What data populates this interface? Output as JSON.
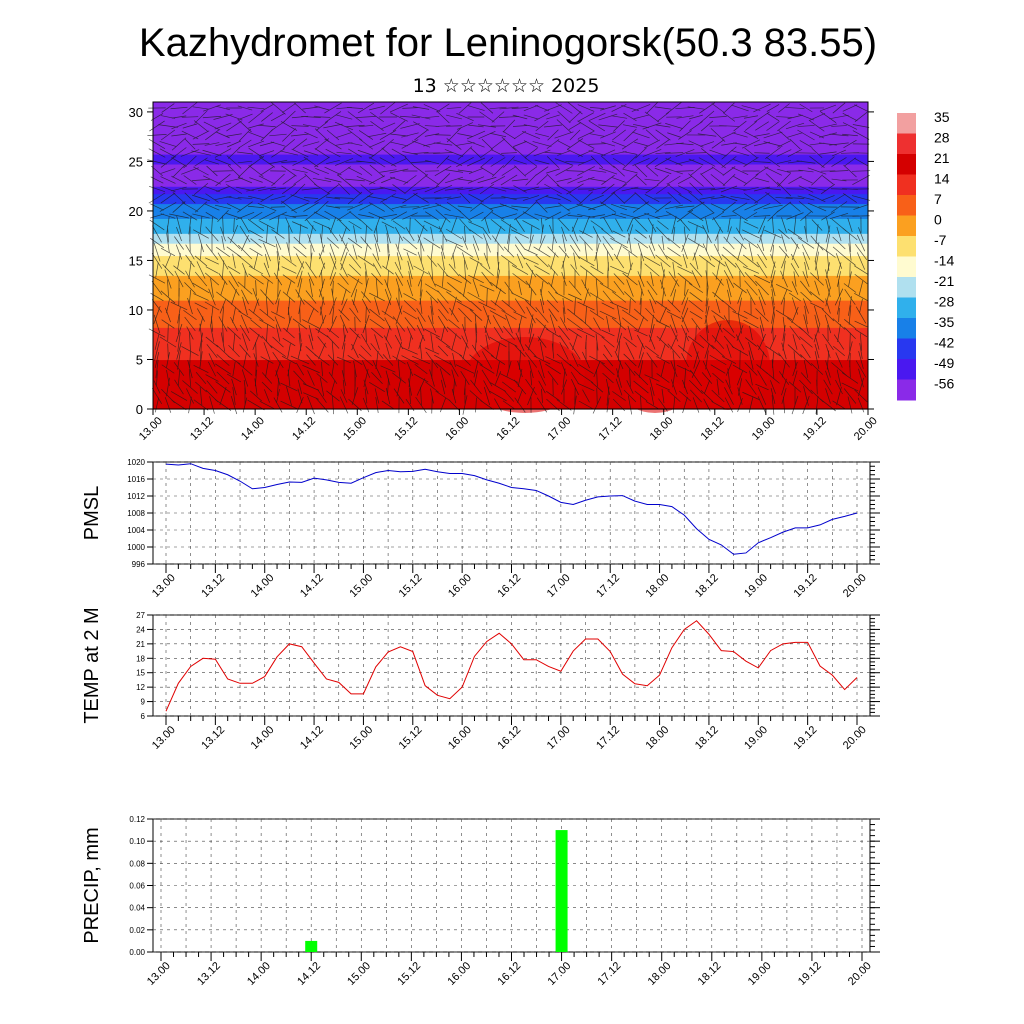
{
  "page": {
    "title": "Kazhydromet for Leninogorsk(50.3 83.55)",
    "subtitle": "13 ☆☆☆☆☆☆ 2025"
  },
  "time_ticks": [
    "13.00",
    "13.12",
    "14.00",
    "14.12",
    "15.00",
    "15.12",
    "16.00",
    "16.12",
    "17.00",
    "17.12",
    "18.00",
    "18.12",
    "19.00",
    "19.12",
    "20.00"
  ],
  "chart_data": [
    {
      "type": "heatmap",
      "description_kind": "temperature cross-section with wind barbs",
      "xlabel": "",
      "ylabel": "",
      "ylim": [
        0,
        31
      ],
      "yticks": [
        0,
        5,
        10,
        15,
        20,
        25,
        30
      ],
      "colorbar": {
        "labels": [
          "35",
          "28",
          "21",
          "14",
          "7",
          "0",
          "-7",
          "-14",
          "-21",
          "-28",
          "-35",
          "-42",
          "-49",
          "-56"
        ],
        "colors": [
          "#f2a0a0",
          "#ee3030",
          "#d40000",
          "#f03020",
          "#f86018",
          "#fba020",
          "#fde070",
          "#fffbd0",
          "#b0e0ef",
          "#30b0ec",
          "#1880e8",
          "#2838f0",
          "#4a18f0",
          "#8a2ae8"
        ]
      },
      "profile": [
        {
          "h": 0,
          "t": 24
        },
        {
          "h": 5,
          "t": 17
        },
        {
          "h": 10,
          "t": 6
        },
        {
          "h": 15,
          "t": -8
        },
        {
          "h": 18,
          "t": -26
        },
        {
          "h": 21,
          "t": -40
        },
        {
          "h": 23,
          "t": -58
        },
        {
          "h": 25,
          "t": -52
        },
        {
          "h": 28,
          "t": -56
        },
        {
          "h": 31,
          "t": -58
        }
      ]
    },
    {
      "type": "line",
      "ylabel": "PMSL",
      "ylim": [
        996,
        1020
      ],
      "yticks": [
        996,
        1000,
        1004,
        1008,
        1012,
        1016,
        1020
      ],
      "series": [
        {
          "color": "#0000cc",
          "x": [
            0,
            3,
            6,
            9,
            12,
            15,
            18,
            21,
            24,
            27,
            30,
            33,
            36,
            39,
            42,
            45,
            48,
            51,
            54,
            57,
            60,
            63,
            66,
            69,
            72,
            75,
            78,
            81,
            84,
            87,
            90,
            93,
            96,
            99,
            102,
            105,
            108,
            111,
            114,
            117,
            120,
            123,
            126,
            129,
            132,
            135,
            138,
            141,
            144,
            147,
            150,
            153,
            156,
            159,
            162,
            165,
            168
          ],
          "values": [
            1019.5,
            1019.3,
            1019.6,
            1018.5,
            1018,
            1017,
            1015.5,
            1013.7,
            1014,
            1014.7,
            1015.3,
            1015.2,
            1016.2,
            1015.8,
            1015.2,
            1015,
            1016.3,
            1017.5,
            1018,
            1017.7,
            1017.8,
            1018.3,
            1017.7,
            1017.3,
            1017.3,
            1016.8,
            1015.8,
            1015,
            1014,
            1013.7,
            1013.3,
            1012,
            1010.5,
            1010,
            1011,
            1011.8,
            1012,
            1012.1,
            1010.8,
            1010,
            1010,
            1009.5,
            1007.5,
            1004.3,
            1001.8,
            1000.5,
            998.3,
            998.6,
            1001,
            1002.2,
            1003.5,
            1004.5,
            1004.5,
            1005.2,
            1006.5,
            1007.2,
            1008
          ]
        }
      ]
    },
    {
      "type": "line",
      "ylabel": "TEMP at 2 M",
      "ylim": [
        6,
        27
      ],
      "yticks": [
        6,
        9,
        12,
        15,
        18,
        21,
        24,
        27
      ],
      "series": [
        {
          "color": "#e00000",
          "x": [
            0,
            3,
            6,
            9,
            12,
            15,
            18,
            21,
            24,
            27,
            30,
            33,
            36,
            39,
            42,
            45,
            48,
            51,
            54,
            57,
            60,
            63,
            66,
            69,
            72,
            75,
            78,
            81,
            84,
            87,
            90,
            93,
            96,
            99,
            102,
            105,
            108,
            111,
            114,
            117,
            120,
            123,
            126,
            129,
            132,
            135,
            138,
            141,
            144,
            147,
            150,
            153,
            156,
            159,
            162,
            165,
            168
          ],
          "values": [
            7,
            12.8,
            16.3,
            18,
            17.8,
            13.7,
            12.8,
            12.8,
            14.2,
            18.3,
            21,
            20.4,
            17,
            13.7,
            13,
            10.6,
            10.6,
            16.2,
            19.3,
            20.4,
            19.4,
            12.3,
            10.3,
            9.6,
            12,
            18.4,
            21.5,
            23.2,
            21,
            17.7,
            17.7,
            16.3,
            15.3,
            19.5,
            22,
            22,
            19.4,
            14.7,
            12.7,
            12.3,
            14.5,
            20.2,
            24,
            25.8,
            23,
            19.6,
            19.4,
            17.4,
            16,
            19.6,
            21,
            21.3,
            21.3,
            16.4,
            14.5,
            11.5,
            14
          ]
        }
      ]
    },
    {
      "type": "bar",
      "ylabel": "PRECIP, mm",
      "ylim": [
        0,
        0.12
      ],
      "yticks": [
        "0.00",
        "0.02",
        "0.04",
        "0.06",
        "0.08",
        "0.10",
        "0.12"
      ],
      "bar_color": "#00ff00",
      "bars": [
        {
          "x": 36,
          "value": 0.01
        },
        {
          "x": 96,
          "value": 0.11
        }
      ]
    }
  ]
}
